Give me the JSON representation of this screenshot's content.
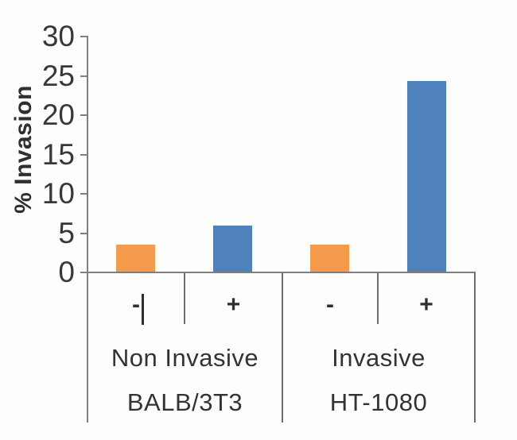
{
  "chart_data": {
    "type": "bar",
    "title": "",
    "xlabel": "",
    "ylabel": "% Invasion",
    "ylim": [
      0,
      30
    ],
    "ytick_interval": 5,
    "yticks": [
      0,
      5,
      10,
      15,
      20,
      25,
      30
    ],
    "grid": false,
    "legend": "none",
    "groups": [
      {
        "label": "Non Invasive",
        "cell_line": "BALB/3T3",
        "bars": [
          {
            "sign": "-",
            "value": 3.5,
            "color_key": "orange"
          },
          {
            "sign": "+",
            "value": 6.0,
            "color_key": "blue"
          }
        ]
      },
      {
        "label": "Invasive",
        "cell_line": "HT-1080",
        "bars": [
          {
            "sign": "-",
            "value": 3.5,
            "color_key": "orange"
          },
          {
            "sign": "+",
            "value": 24.3,
            "color_key": "blue"
          }
        ]
      }
    ],
    "colors": {
      "orange": "#F5994A",
      "blue": "#4F81BD",
      "axis": "#7f7f7f",
      "text": "#3a3a3a"
    }
  }
}
